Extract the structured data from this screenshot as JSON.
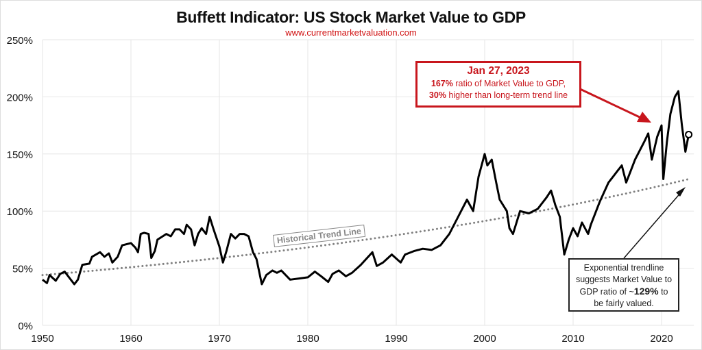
{
  "chart_data": {
    "type": "line",
    "title": "Buffett Indicator: US Stock Market Value to GDP",
    "subtitle": "www.currentmarketvaluation.com",
    "xlabel": "",
    "ylabel": "",
    "xlim": [
      1950,
      2023.5
    ],
    "ylim": [
      0,
      250
    ],
    "x_ticks": [
      "1950",
      "1960",
      "1970",
      "1980",
      "1990",
      "2000",
      "2010",
      "2020"
    ],
    "y_ticks": [
      "0%",
      "50%",
      "100%",
      "150%",
      "200%",
      "250%"
    ],
    "grid": true,
    "series": [
      {
        "color": "#000000",
        "x": [
          1950,
          1950.5,
          1950.8,
          1951.5,
          1952,
          1952.5,
          1953,
          1953.6,
          1954,
          1954.5,
          1955.3,
          1955.6,
          1956.5,
          1957,
          1957.5,
          1957.9,
          1958.5,
          1959,
          1960,
          1960.5,
          1960.8,
          1961.1,
          1961.5,
          1962,
          1962.3,
          1962.7,
          1963,
          1964,
          1964.5,
          1965,
          1965.5,
          1966,
          1966.3,
          1966.8,
          1967.2,
          1967.6,
          1968,
          1968.5,
          1968.9,
          1969.3,
          1970,
          1970.4,
          1970.8,
          1971.3,
          1971.8,
          1972.3,
          1972.8,
          1973.3,
          1973.8,
          1974.2,
          1974.8,
          1975.3,
          1976,
          1976.5,
          1977,
          1978,
          1979,
          1980,
          1980.8,
          1981.5,
          1982.3,
          1982.8,
          1983.5,
          1984.3,
          1985,
          1986,
          1987.3,
          1987.8,
          1988.5,
          1989.5,
          1990.5,
          1991,
          1992,
          1993,
          1994,
          1995,
          1996,
          1997,
          1998,
          1998.7,
          1999.3,
          2000,
          2000.3,
          2000.8,
          2001.3,
          2001.7,
          2002.5,
          2002.8,
          2003.2,
          2004,
          2005,
          2006,
          2007,
          2007.5,
          2008,
          2008.5,
          2009,
          2009.5,
          2010,
          2010.5,
          2011,
          2011.7,
          2012,
          2013,
          2014,
          2014.5,
          2015,
          2015.5,
          2016,
          2016.5,
          2017,
          2018,
          2018.5,
          2018.9,
          2019.5,
          2020,
          2020.2,
          2020.6,
          2021,
          2021.5,
          2021.9,
          2022.3,
          2022.7,
          2023.07
        ],
        "values": [
          40,
          37,
          44,
          39,
          45,
          47,
          42,
          36,
          40,
          53,
          54,
          60,
          64,
          60,
          63,
          55,
          60,
          70,
          72,
          68,
          64,
          80,
          81,
          80,
          59,
          65,
          75,
          80,
          78,
          84,
          84,
          80,
          88,
          84,
          70,
          80,
          85,
          80,
          95,
          85,
          69,
          55,
          65,
          80,
          76,
          80,
          80,
          78,
          64,
          58,
          36,
          44,
          48,
          46,
          48,
          40,
          41,
          42,
          47,
          43,
          38,
          45,
          48,
          43,
          46,
          53,
          64,
          52,
          55,
          62,
          55,
          62,
          65,
          67,
          66,
          70,
          80,
          95,
          110,
          100,
          130,
          150,
          140,
          145,
          125,
          110,
          100,
          85,
          80,
          100,
          98,
          102,
          112,
          118,
          105,
          95,
          62,
          75,
          85,
          78,
          90,
          80,
          88,
          108,
          125,
          130,
          135,
          140,
          125,
          135,
          145,
          160,
          168,
          145,
          165,
          175,
          128,
          160,
          185,
          200,
          205,
          175,
          152,
          167
        ]
      }
    ],
    "trendline": {
      "type": "exponential",
      "label": "Historical Trend Line",
      "start": [
        1950,
        44
      ],
      "end": [
        2023.07,
        128
      ],
      "color": "#808080"
    },
    "endpoint": {
      "x": 2023.07,
      "value": 167
    },
    "annotations": {
      "callout": {
        "date": "Jan 27, 2023",
        "line1_bold": "167%",
        "line1_rest": " ratio of Market Value to GDP,",
        "line2_bold": "30%",
        "line2_rest": " higher than long-term trend line",
        "color": "#c8161d"
      },
      "note": {
        "line1": "Exponential trendline",
        "line2": "suggests Market Value to",
        "line3_pre": "GDP ratio of ~",
        "line3_bold": "129%",
        "line3_post": " to",
        "line4": "be fairly valued."
      }
    }
  }
}
